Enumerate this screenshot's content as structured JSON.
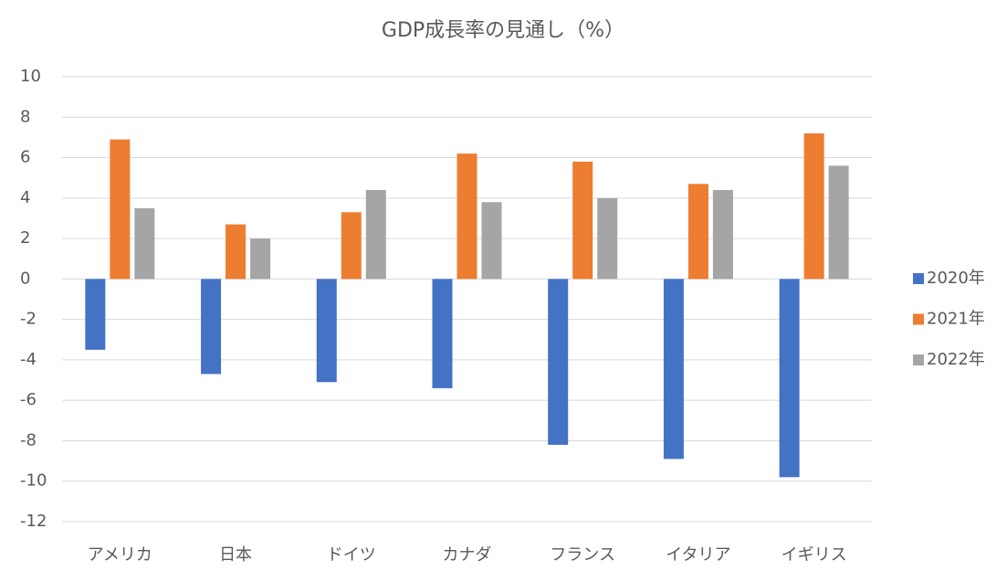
{
  "chart_data": {
    "type": "bar",
    "title": "GDP成長率の見通し（%）",
    "categories": [
      "アメリカ",
      "日本",
      "ドイツ",
      "カナダ",
      "フランス",
      "イタリア",
      "イギリス"
    ],
    "series": [
      {
        "name": "2020年",
        "color": "#4472c4",
        "values": [
          -3.5,
          -4.7,
          -5.1,
          -5.4,
          -8.2,
          -8.9,
          -9.8
        ]
      },
      {
        "name": "2021年",
        "color": "#ed7d31",
        "values": [
          6.9,
          2.7,
          3.3,
          6.2,
          5.8,
          4.7,
          7.2
        ]
      },
      {
        "name": "2022年",
        "color": "#a5a5a5",
        "values": [
          3.5,
          2.0,
          4.4,
          3.8,
          4.0,
          4.4,
          5.6
        ]
      }
    ],
    "ylim": [
      -12,
      10
    ],
    "yticks": [
      -12,
      -10,
      -8,
      -6,
      -4,
      -2,
      0,
      2,
      4,
      6,
      8,
      10
    ],
    "grid": true,
    "legend": "right"
  }
}
